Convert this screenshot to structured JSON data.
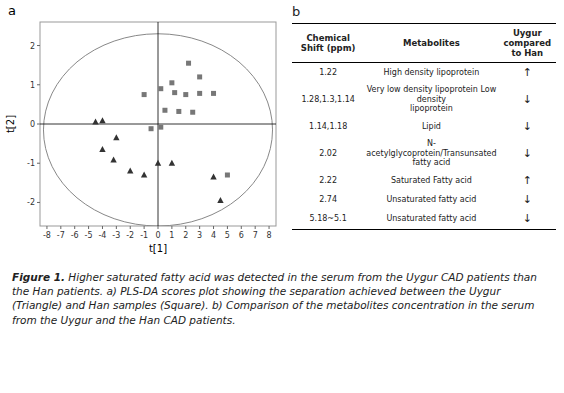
{
  "chart_data": [
    {
      "type": "scatter",
      "title": "a",
      "xlabel": "t[1]",
      "ylabel": "t[2]",
      "xlim": [
        -8.5,
        8.5
      ],
      "ylim": [
        -2.6,
        2.6
      ],
      "xticks": [
        -8,
        -7,
        -6,
        -5,
        -4,
        -3,
        -2,
        -1,
        0,
        1,
        2,
        3,
        4,
        5,
        6,
        7,
        8
      ],
      "yticks": [
        -2,
        -1,
        0,
        1,
        2
      ],
      "hlines": [
        0
      ],
      "vlines": [
        0
      ],
      "ellipse": {
        "cx": 0.0,
        "cy": -0.15,
        "width": 16.5,
        "height": 4.9
      },
      "series": [
        {
          "color": "#777777",
          "marker": "square",
          "x": [
            -1,
            0.2,
            1,
            2.2,
            3,
            1.2,
            2,
            3,
            4,
            0.5,
            1.5,
            2.5,
            5,
            -0.5,
            0.2
          ],
          "values": [
            0.75,
            0.9,
            1.05,
            1.55,
            1.2,
            0.8,
            0.75,
            0.78,
            0.78,
            0.35,
            0.32,
            0.3,
            -1.3,
            -0.12,
            -0.08
          ]
        },
        {
          "color": "#333333",
          "marker": "triangle",
          "x": [
            -4.5,
            -4,
            -3,
            -4,
            -3.2,
            -2,
            -1,
            0,
            1,
            4,
            4.5
          ],
          "values": [
            0.05,
            0.08,
            -0.35,
            -0.65,
            -0.92,
            -1.2,
            -1.3,
            -1.0,
            -1.0,
            -1.35,
            -1.95
          ]
        }
      ]
    },
    {
      "type": "table",
      "title": "b",
      "columns": [
        "Chemical Shift (ppm)",
        "Metabolites",
        "Uygur compared to Han"
      ],
      "rows": [
        [
          "1.22",
          "High density lipoprotein",
          "↑"
        ],
        [
          "1.28,1.3,1.14",
          "Very low density lipoprotein Low density\nlipoprotein",
          "↓"
        ],
        [
          "1.14,1.18",
          "Lipid",
          "↓"
        ],
        [
          "2.02",
          "N-acetylglycoprotein/Transunsated fatty acid",
          "↓"
        ],
        [
          "2.22",
          "Saturated Fatty acid",
          "↑"
        ],
        [
          "2.74",
          "Unsaturated fatty acid",
          "↓"
        ],
        [
          "5.18~5.1",
          "Unsaturated fatty acid",
          "↓"
        ]
      ],
      "annotations": [
        "Figure 1.",
        " Higher saturated fatty acid was detected in the serum from the Uygur CAD patients than the Han patients. a) PLS-DA scores plot showing the separation achieved between the Uygur (Triangle) and Han samples (Square). b) Comparison of the metabolites concentration in the serum from the Uygur and the Han CAD patients."
      ]
    }
  ]
}
